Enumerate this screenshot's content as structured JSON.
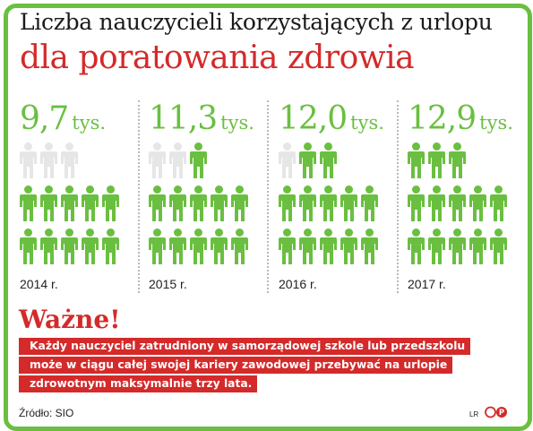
{
  "title": {
    "line1": "Liczba nauczycieli korzystających z urlopu",
    "line2": "dla poratowania zdrowia"
  },
  "chart_data": {
    "type": "pictogram",
    "unit": "tys.",
    "colors": {
      "filled": "#6abf40",
      "empty": "#e6e6e6",
      "accent": "#d42a2a"
    },
    "icons_per_column": 13,
    "series": [
      {
        "year": "2014 r.",
        "value": 9.7,
        "label": "9,7",
        "filled_icons": 10
      },
      {
        "year": "2015 r.",
        "value": 11.3,
        "label": "11,3",
        "filled_icons": 11
      },
      {
        "year": "2016 r.",
        "value": 12.0,
        "label": "12,0",
        "filled_icons": 12
      },
      {
        "year": "2017 r.",
        "value": 12.9,
        "label": "12,9",
        "filled_icons": 13
      }
    ]
  },
  "note": {
    "heading": "Ważne!",
    "lines": [
      "Każdy nauczyciel zatrudniony w samorządowej szkole lub przedszkolu",
      "może w ciągu całej swojej kariery zawodowej przebywać na urlopie",
      "zdrowotnym maksymalnie trzy lata."
    ]
  },
  "footer": {
    "source": "Źródło: SIO",
    "author": "LR",
    "logo_icon": "rp-logo-icon"
  }
}
